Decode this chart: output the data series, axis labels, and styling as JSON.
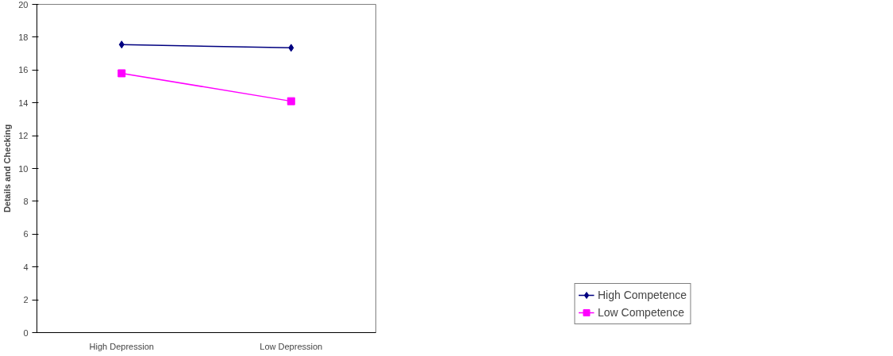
{
  "chart_data": {
    "type": "line",
    "ylabel": "Details and Checking",
    "categories": [
      "High Depression",
      "Low Depression"
    ],
    "series": [
      {
        "name": "High Competence",
        "color": "#000080",
        "marker": "diamond",
        "values": [
          17.55,
          17.35
        ]
      },
      {
        "name": "Low Competence",
        "color": "#ff00ff",
        "marker": "square",
        "values": [
          15.8,
          14.1
        ]
      }
    ],
    "ylim": [
      0,
      20
    ],
    "yticks": [
      0,
      2,
      4,
      6,
      8,
      10,
      12,
      14,
      16,
      18,
      20
    ],
    "grid": false,
    "legend": "right"
  }
}
